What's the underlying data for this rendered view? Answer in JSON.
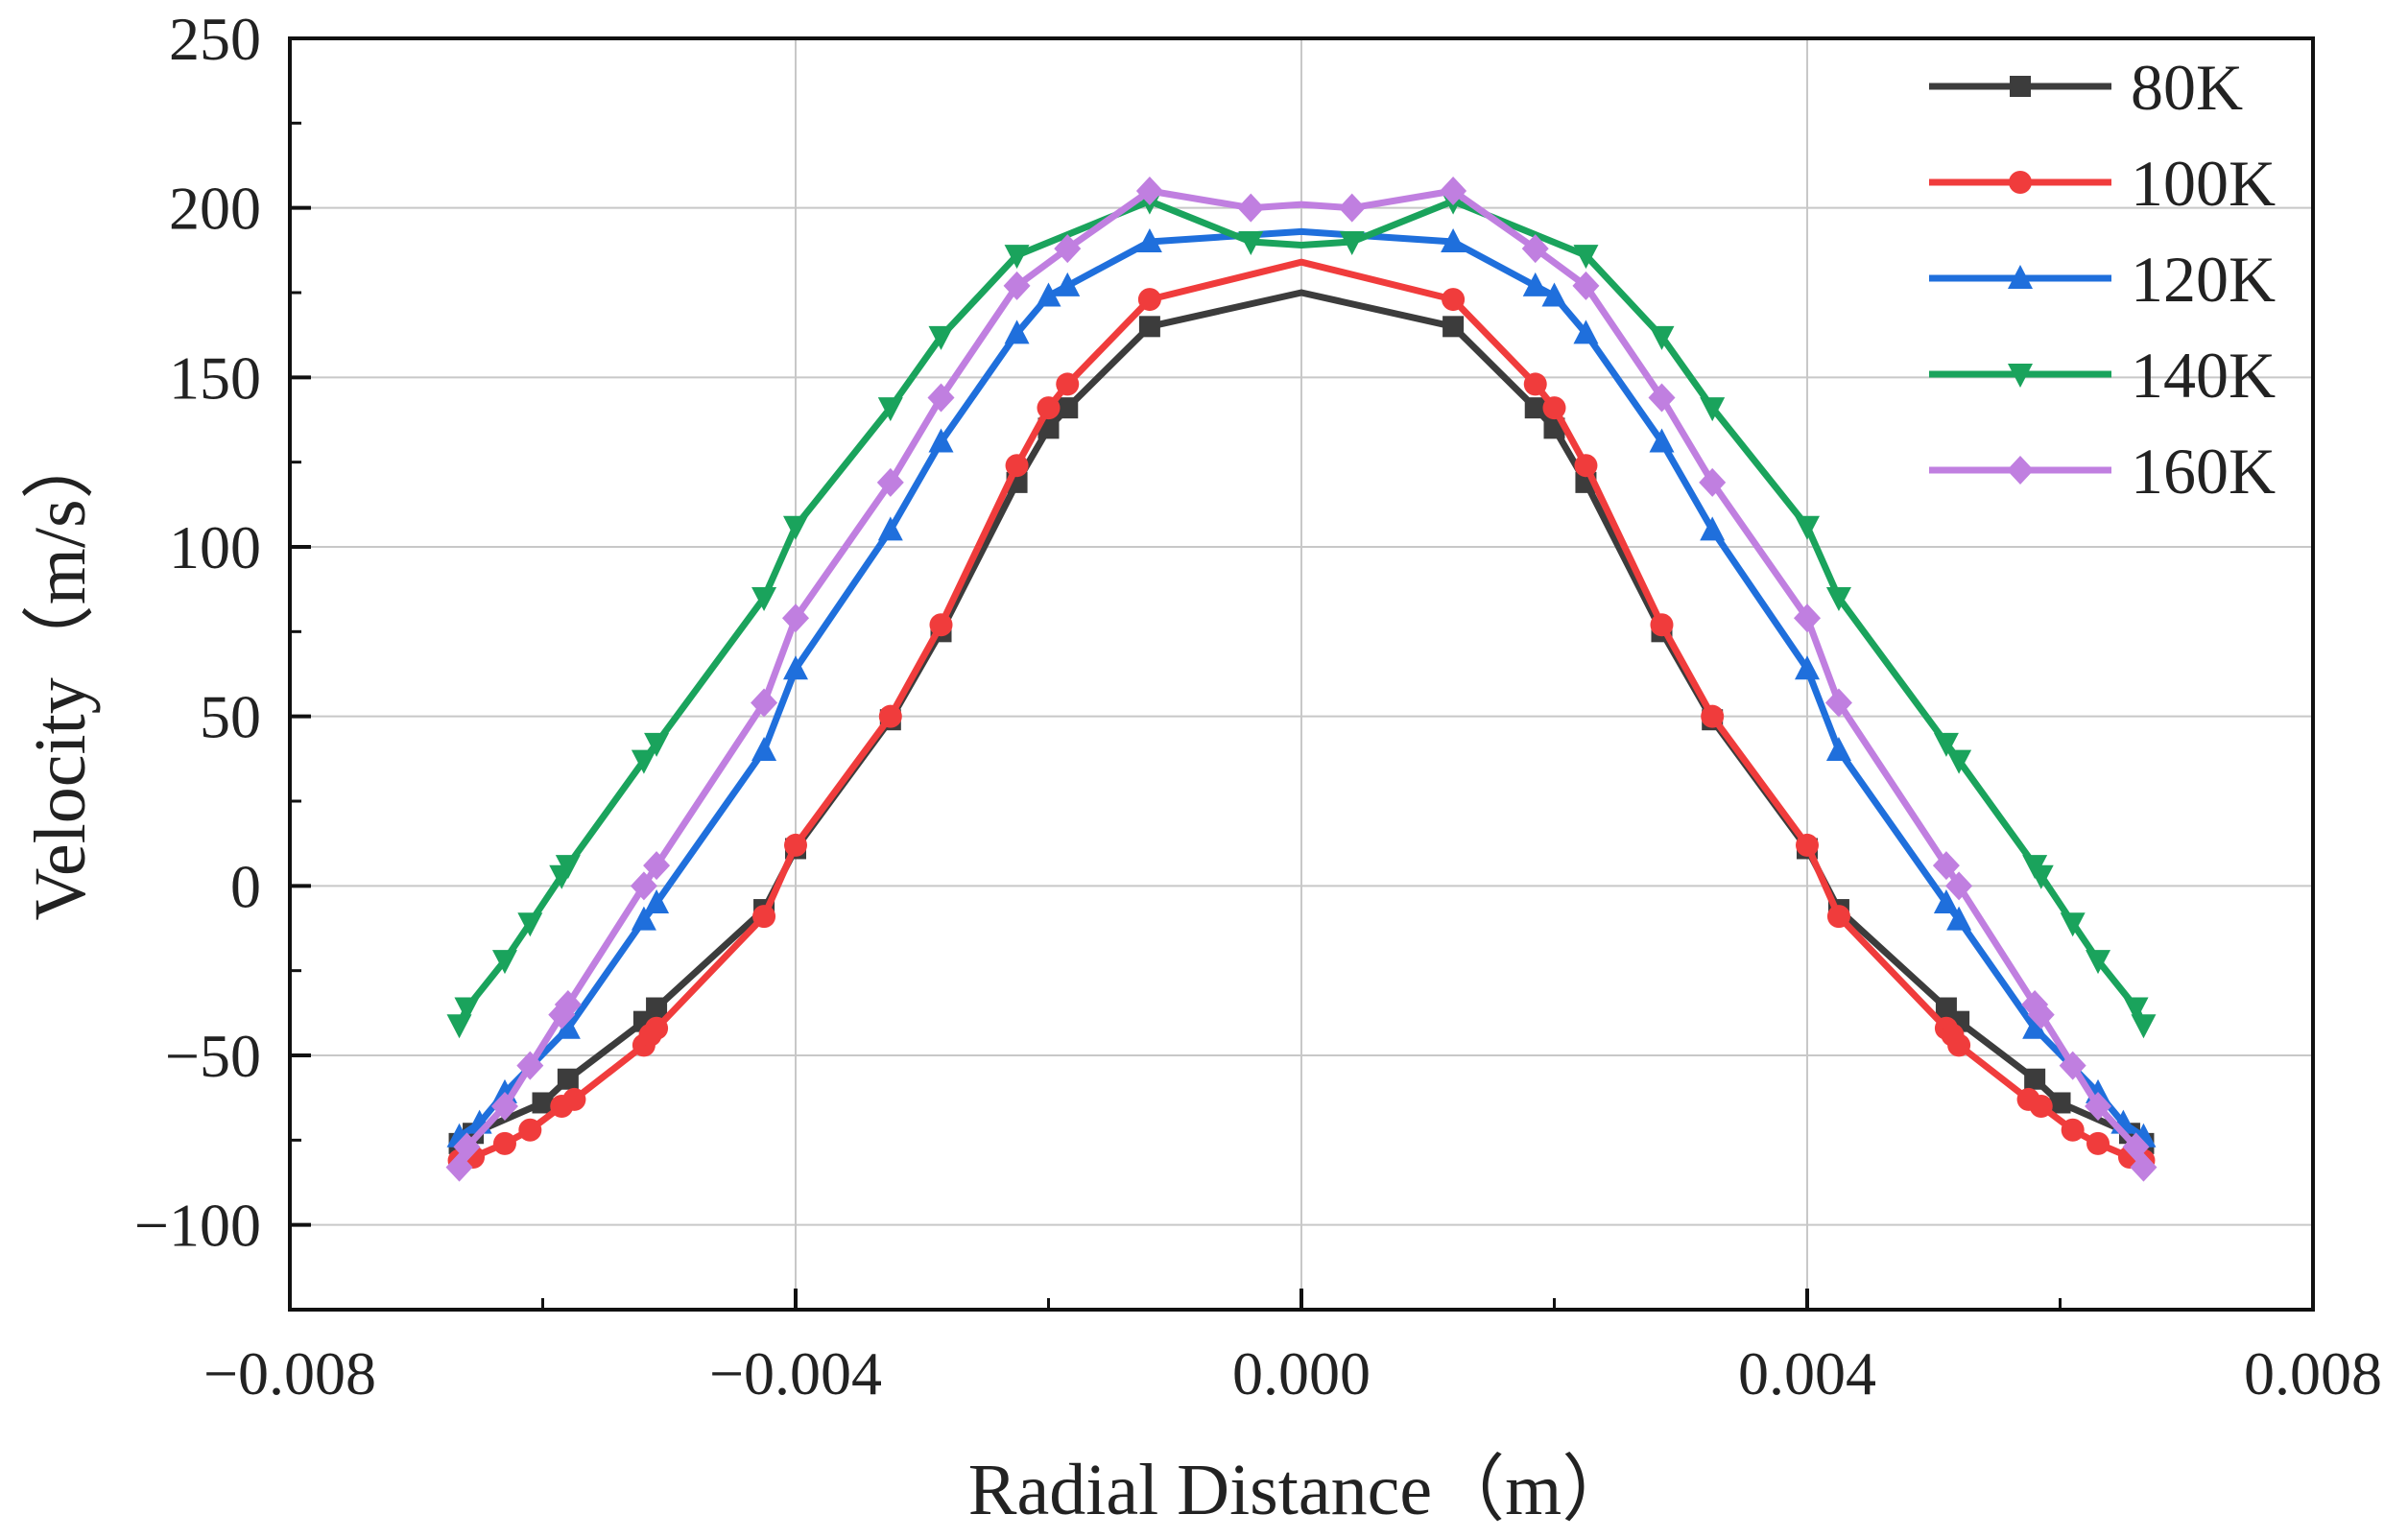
{
  "chart_data": {
    "type": "line",
    "title": "",
    "xlabel": "Radial Distance（m）",
    "ylabel": "Velocity（m/s）",
    "xlim": [
      -0.008,
      0.008
    ],
    "ylim": [
      -125,
      250
    ],
    "xticks": [
      -0.008,
      -0.004,
      0.0,
      0.004,
      0.008
    ],
    "xtick_labels": [
      "−0.008",
      "−0.004",
      "0.000",
      "0.004",
      "0.008"
    ],
    "yticks": [
      -100,
      -50,
      0,
      50,
      100,
      150,
      200,
      250
    ],
    "ytick_labels": [
      "−100",
      "−50",
      "0",
      "50",
      "100",
      "150",
      "200",
      "250"
    ],
    "grid": true,
    "legend_position": "top-right",
    "series": [
      {
        "name": "80K",
        "color": "#3c3c3c",
        "marker": "square",
        "x": [
          -0.00666,
          -0.00655,
          -0.006,
          -0.0058,
          -0.0052,
          -0.0051,
          -0.00425,
          -0.004,
          -0.00325,
          -0.00285,
          -0.00225,
          -0.002,
          -0.00185,
          -0.0012,
          0.0,
          0.0012,
          0.00185,
          0.002,
          0.00225,
          0.00285,
          0.00325,
          0.004,
          0.00425,
          0.0051,
          0.0052,
          0.0058,
          0.006,
          0.00655,
          0.00666
        ],
        "y": [
          -76,
          -73,
          -64,
          -57,
          -40,
          -36,
          -7,
          11,
          49,
          75,
          119,
          135,
          141,
          165,
          175,
          165,
          141,
          135,
          119,
          75,
          49,
          11,
          -7,
          -36,
          -40,
          -57,
          -64,
          -73,
          -76
        ],
        "marker_x": [
          -0.00666,
          -0.00655,
          -0.006,
          -0.0058,
          -0.0052,
          -0.0051,
          -0.00425,
          -0.004,
          -0.00325,
          -0.00285,
          -0.00225,
          -0.002,
          -0.00185,
          -0.0012,
          0.0012,
          0.00185,
          0.002,
          0.00225,
          0.00285,
          0.00325,
          0.004,
          0.00425,
          0.0051,
          0.0052,
          0.0058,
          0.006,
          0.00655,
          0.00666
        ]
      },
      {
        "name": "100K",
        "color": "#f03c3c",
        "marker": "circle",
        "x": [
          -0.00666,
          -0.00655,
          -0.0063,
          -0.0061,
          -0.00585,
          -0.00575,
          -0.0052,
          -0.00515,
          -0.0051,
          -0.00425,
          -0.004,
          -0.00325,
          -0.00285,
          -0.00225,
          -0.002,
          -0.00185,
          -0.0012,
          0.0,
          0.0012,
          0.00185,
          0.002,
          0.00225,
          0.00285,
          0.00325,
          0.004,
          0.00425,
          0.0051,
          0.00515,
          0.0052,
          0.00575,
          0.00585,
          0.0061,
          0.0063,
          0.00655,
          0.00666
        ],
        "y": [
          -81,
          -80,
          -76,
          -72,
          -65,
          -63,
          -47,
          -44,
          -42,
          -9,
          12,
          50,
          77,
          124,
          141,
          148,
          173,
          184,
          173,
          148,
          141,
          124,
          77,
          50,
          12,
          -9,
          -42,
          -44,
          -47,
          -63,
          -65,
          -72,
          -76,
          -80,
          -81
        ],
        "marker_x": [
          -0.00666,
          -0.00655,
          -0.0063,
          -0.0061,
          -0.00585,
          -0.00575,
          -0.0052,
          -0.00515,
          -0.0051,
          -0.00425,
          -0.004,
          -0.00325,
          -0.00285,
          -0.00225,
          -0.002,
          -0.00185,
          -0.0012,
          0.0012,
          0.00185,
          0.002,
          0.00225,
          0.00285,
          0.00325,
          0.004,
          0.00425,
          0.0051,
          0.00515,
          0.0052,
          0.00575,
          0.00585,
          0.0061,
          0.0063,
          0.00655,
          0.00666
        ]
      },
      {
        "name": "120K",
        "color": "#1f6fdc",
        "marker": "triangle-up",
        "x": [
          -0.00666,
          -0.0065,
          -0.0063,
          -0.0058,
          -0.0052,
          -0.0051,
          -0.00425,
          -0.004,
          -0.00325,
          -0.00285,
          -0.00225,
          -0.002,
          -0.00185,
          -0.0012,
          0.0,
          0.0012,
          0.00185,
          0.002,
          0.00225,
          0.00285,
          0.00325,
          0.004,
          0.00425,
          0.0051,
          0.0052,
          0.0058,
          0.0063,
          0.0065,
          0.00666
        ],
        "y": [
          -74,
          -70,
          -61,
          -42,
          -10,
          -5,
          40,
          64,
          105,
          131,
          163,
          174,
          177,
          190,
          193,
          190,
          177,
          174,
          163,
          131,
          105,
          64,
          40,
          -5,
          -10,
          -42,
          -61,
          -70,
          -74
        ],
        "marker_x": [
          -0.00666,
          -0.0065,
          -0.0063,
          -0.0058,
          -0.0052,
          -0.0051,
          -0.00425,
          -0.004,
          -0.00325,
          -0.00285,
          -0.00225,
          -0.002,
          -0.00185,
          -0.0012,
          0.0012,
          0.00185,
          0.002,
          0.00225,
          0.00285,
          0.00325,
          0.004,
          0.00425,
          0.0051,
          0.0052,
          0.0058,
          0.0063,
          0.0065,
          0.00666
        ]
      },
      {
        "name": "140K",
        "color": "#1aa35c",
        "marker": "triangle-down",
        "x": [
          -0.00666,
          -0.0066,
          -0.0063,
          -0.0061,
          -0.00585,
          -0.0058,
          -0.0052,
          -0.0051,
          -0.00425,
          -0.004,
          -0.00325,
          -0.00285,
          -0.00225,
          -0.0012,
          -0.0004,
          0.0,
          0.0004,
          0.0012,
          0.00225,
          0.00285,
          0.00325,
          0.004,
          0.00425,
          0.0051,
          0.0052,
          0.0058,
          0.00585,
          0.0061,
          0.0063,
          0.0066,
          0.00666
        ],
        "y": [
          -41,
          -36,
          -22,
          -11,
          3,
          6,
          37,
          42,
          85,
          106,
          141,
          162,
          186,
          202,
          190,
          189,
          190,
          202,
          186,
          162,
          141,
          106,
          85,
          42,
          37,
          6,
          3,
          -11,
          -22,
          -36,
          -41
        ],
        "marker_x": [
          -0.00666,
          -0.0066,
          -0.0063,
          -0.0061,
          -0.00585,
          -0.0058,
          -0.0052,
          -0.0051,
          -0.00425,
          -0.004,
          -0.00325,
          -0.00285,
          -0.00225,
          -0.0012,
          -0.0004,
          0.0004,
          0.0012,
          0.00225,
          0.00285,
          0.00325,
          0.004,
          0.00425,
          0.0051,
          0.0052,
          0.0058,
          0.00585,
          0.0061,
          0.0063,
          0.0066,
          0.00666
        ]
      },
      {
        "name": "160K",
        "color": "#c07fe0",
        "marker": "diamond",
        "x": [
          -0.00666,
          -0.0066,
          -0.0063,
          -0.0061,
          -0.00585,
          -0.0058,
          -0.0052,
          -0.0051,
          -0.00425,
          -0.004,
          -0.00325,
          -0.00285,
          -0.00225,
          -0.00185,
          -0.0012,
          -0.0004,
          0.0,
          0.0004,
          0.0012,
          0.00185,
          0.00225,
          0.00285,
          0.00325,
          0.004,
          0.00425,
          0.0051,
          0.0052,
          0.0058,
          0.00585,
          0.0061,
          0.0063,
          0.0066,
          0.00666
        ],
        "y": [
          -83,
          -77,
          -65,
          -53,
          -38,
          -35,
          0,
          6,
          54,
          79,
          119,
          144,
          177,
          188,
          205,
          200,
          201,
          200,
          205,
          188,
          177,
          144,
          119,
          79,
          54,
          6,
          0,
          -35,
          -38,
          -53,
          -65,
          -77,
          -83
        ],
        "marker_x": [
          -0.00666,
          -0.0066,
          -0.0063,
          -0.0061,
          -0.00585,
          -0.0058,
          -0.0052,
          -0.0051,
          -0.00425,
          -0.004,
          -0.00325,
          -0.00285,
          -0.00225,
          -0.00185,
          -0.0012,
          -0.0004,
          0.0004,
          0.0012,
          0.00185,
          0.00225,
          0.00285,
          0.00325,
          0.004,
          0.00425,
          0.0051,
          0.0052,
          0.0058,
          0.00585,
          0.0061,
          0.0063,
          0.0066,
          0.00666
        ]
      }
    ]
  }
}
